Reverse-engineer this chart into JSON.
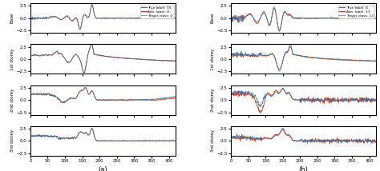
{
  "fig_a": {
    "title_label": "(a)",
    "legend_labels": [
      "True label: 15",
      "Adv. label: 0",
      "Target class: 0"
    ],
    "legend_colors": [
      "#1f77b4",
      "#d62728",
      "#ff7f0e"
    ],
    "row_labels": [
      "Base",
      "1st storey",
      "2nd storey",
      "3rd storey"
    ],
    "xlim": [
      0,
      420
    ],
    "xticks": [
      0,
      50,
      100,
      150,
      200,
      250,
      300,
      350,
      400
    ],
    "ylim": [
      -3.0,
      3.0
    ],
    "yticks": [
      -2.5,
      0.0,
      2.5
    ]
  },
  "fig_b": {
    "title_label": "(b)",
    "legend_labels": [
      "True label: 8",
      "Adv. label: 13",
      "Target class: 13"
    ],
    "legend_colors": [
      "#1f77b4",
      "#d62728",
      "#ff7f0e"
    ],
    "row_labels": [
      "Base",
      "1st storey",
      "2nd storey",
      "3rd storey"
    ],
    "xlim": [
      0,
      420
    ],
    "xticks": [
      0,
      50,
      100,
      150,
      200,
      250,
      300,
      350,
      400
    ],
    "ylim": [
      -3.0,
      3.0
    ],
    "yticks": [
      -2.5,
      0.0,
      2.5
    ]
  }
}
